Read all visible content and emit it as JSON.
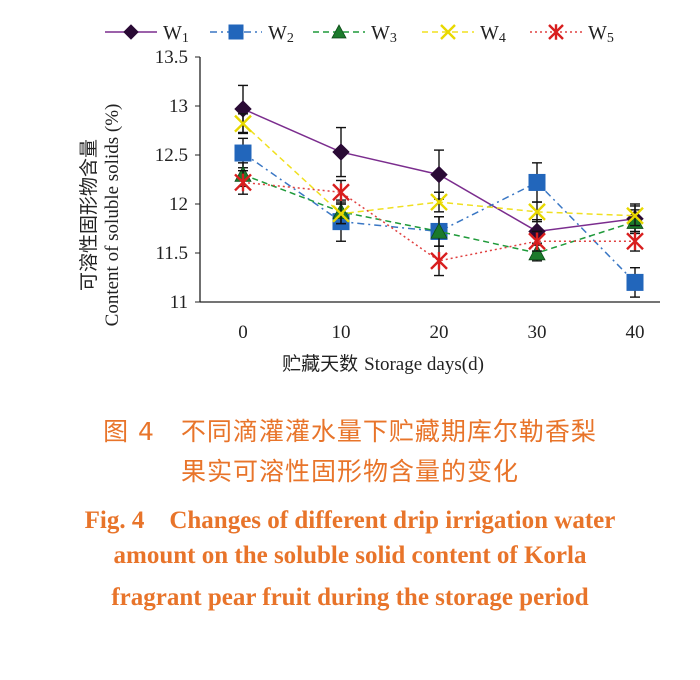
{
  "chart_data": {
    "type": "line",
    "x": [
      0,
      10,
      20,
      30,
      40
    ],
    "xlabel_cn": "贮藏天数",
    "xlabel_en": "Storage days(d)",
    "ylabel_cn": "可溶性固形物含量",
    "ylabel_en": "Content of soluble solids (%)",
    "ylim": [
      11,
      13.5
    ],
    "yticks": [
      "11",
      "11.5",
      "12",
      "12.5",
      "13",
      "13.5"
    ],
    "xticks": [
      "0",
      "10",
      "20",
      "30",
      "40"
    ],
    "grid": false,
    "legend_position": "top",
    "series": [
      {
        "name": "W1",
        "label_main": "W",
        "label_sub": "1",
        "marker": "diamond",
        "color": "#7b2d8e",
        "marker_color": "#2a0a35",
        "dash": "",
        "values": [
          12.97,
          12.53,
          12.3,
          11.72,
          11.85
        ],
        "errors": [
          0.24,
          0.25,
          0.25,
          0.12,
          0.15
        ]
      },
      {
        "name": "W2",
        "label_main": "W",
        "label_sub": "2",
        "marker": "square",
        "color": "#3a77c4",
        "marker_color": "#2266bb",
        "dash": "7,4,2,4",
        "values": [
          12.52,
          11.82,
          11.72,
          12.22,
          11.2
        ],
        "errors": [
          0.15,
          0.2,
          0.15,
          0.2,
          0.15
        ]
      },
      {
        "name": "W3",
        "label_main": "W",
        "label_sub": "3",
        "marker": "triangle",
        "color": "#1f9a3a",
        "marker_color": "#1b7a2b",
        "dash": "6,4",
        "values": [
          12.3,
          11.92,
          11.72,
          11.5,
          11.82
        ],
        "errors": [
          0.12,
          0.12,
          0.15,
          0.08,
          0.12
        ]
      },
      {
        "name": "W4",
        "label_main": "W",
        "label_sub": "4",
        "marker": "x",
        "color": "#f0e020",
        "marker_color": "#e8d800",
        "dash": "6,4",
        "values": [
          12.82,
          11.9,
          12.02,
          11.92,
          11.88
        ],
        "errors": [
          0.1,
          0.1,
          0.1,
          0.1,
          0.1
        ]
      },
      {
        "name": "W5",
        "label_main": "W",
        "label_sub": "5",
        "marker": "star",
        "color": "#e04040",
        "marker_color": "#d81e1e",
        "dash": "2,3",
        "values": [
          12.22,
          12.12,
          11.42,
          11.62,
          11.62
        ],
        "errors": [
          0.12,
          0.12,
          0.15,
          0.1,
          0.1
        ]
      }
    ]
  },
  "caption": {
    "cn_line1": "图 4　不同滴灌灌水量下贮藏期库尔勒香梨",
    "cn_line2": "果实可溶性固形物含量的变化",
    "en_line1": "Fig. 4　Changes of different drip irrigation water",
    "en_line2": "amount on the soluble solid content of Korla",
    "en_line3": "fragrant pear fruit during the storage period"
  }
}
